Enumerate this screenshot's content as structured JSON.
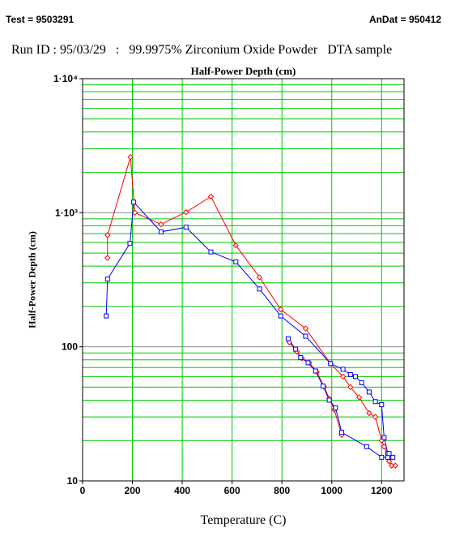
{
  "header": {
    "test_label": "Test = 9503291",
    "andat_label": "AnDat = 950412"
  },
  "run_line": "Run ID : 95/03/29   :   99.9975% Zirconium Oxide Powder   DTA sample",
  "chart_data": {
    "type": "line",
    "title": "Half-Power Depth (cm)",
    "xlabel": "Temperature (C)",
    "ylabel": "Half-Power Depth (cm)",
    "xlim": [
      0,
      1290
    ],
    "ylim": [
      10,
      10000
    ],
    "yscale": "log",
    "grid": true,
    "x_ticks": [
      "0",
      "200",
      "400",
      "600",
      "800",
      "1000",
      "1200"
    ],
    "y_ticks": [
      "10",
      "100",
      "1·10³",
      "1·10⁴"
    ],
    "series": [
      {
        "color": "#ff0000",
        "marker": "diamond",
        "x": [
          100,
          100,
          192,
          210,
          315,
          415,
          515,
          615,
          710,
          795,
          895,
          995,
          1045,
          1075,
          1110,
          1150,
          1175,
          1200,
          1210,
          1225,
          1230,
          1240,
          1255
        ],
        "y": [
          460,
          680,
          2600,
          1000,
          820,
          1010,
          1320,
          570,
          330,
          190,
          137,
          75,
          60,
          50,
          42,
          32,
          30,
          20,
          18,
          16,
          14,
          13,
          13
        ]
      },
      {
        "color": "#0000ff",
        "marker": "square",
        "x": [
          95,
          100,
          190,
          205,
          315,
          415,
          515,
          615,
          710,
          795,
          895,
          995,
          1045,
          1075,
          1095,
          1120,
          1150,
          1175,
          1200,
          1210,
          1225,
          1235,
          1245
        ],
        "y": [
          170,
          320,
          590,
          1200,
          720,
          780,
          510,
          430,
          270,
          170,
          120,
          75,
          68,
          62,
          60,
          54,
          46,
          39,
          37,
          21,
          16,
          15,
          15
        ]
      },
      {
        "color": "#ff0000",
        "marker": "diamond",
        "x": [
          830,
          860,
          880,
          910,
          940,
          970,
          990,
          1010,
          1040
        ],
        "y": [
          108,
          92,
          82,
          76,
          65,
          50,
          41,
          34,
          22
        ]
      },
      {
        "color": "#0000ff",
        "marker": "square",
        "x": [
          825,
          855,
          875,
          905,
          935,
          965,
          990,
          1015,
          1040,
          1140,
          1200,
          1225,
          1230
        ],
        "y": [
          115,
          96,
          83,
          76,
          66,
          51,
          40,
          35,
          23,
          18,
          15,
          15,
          16
        ]
      }
    ]
  }
}
